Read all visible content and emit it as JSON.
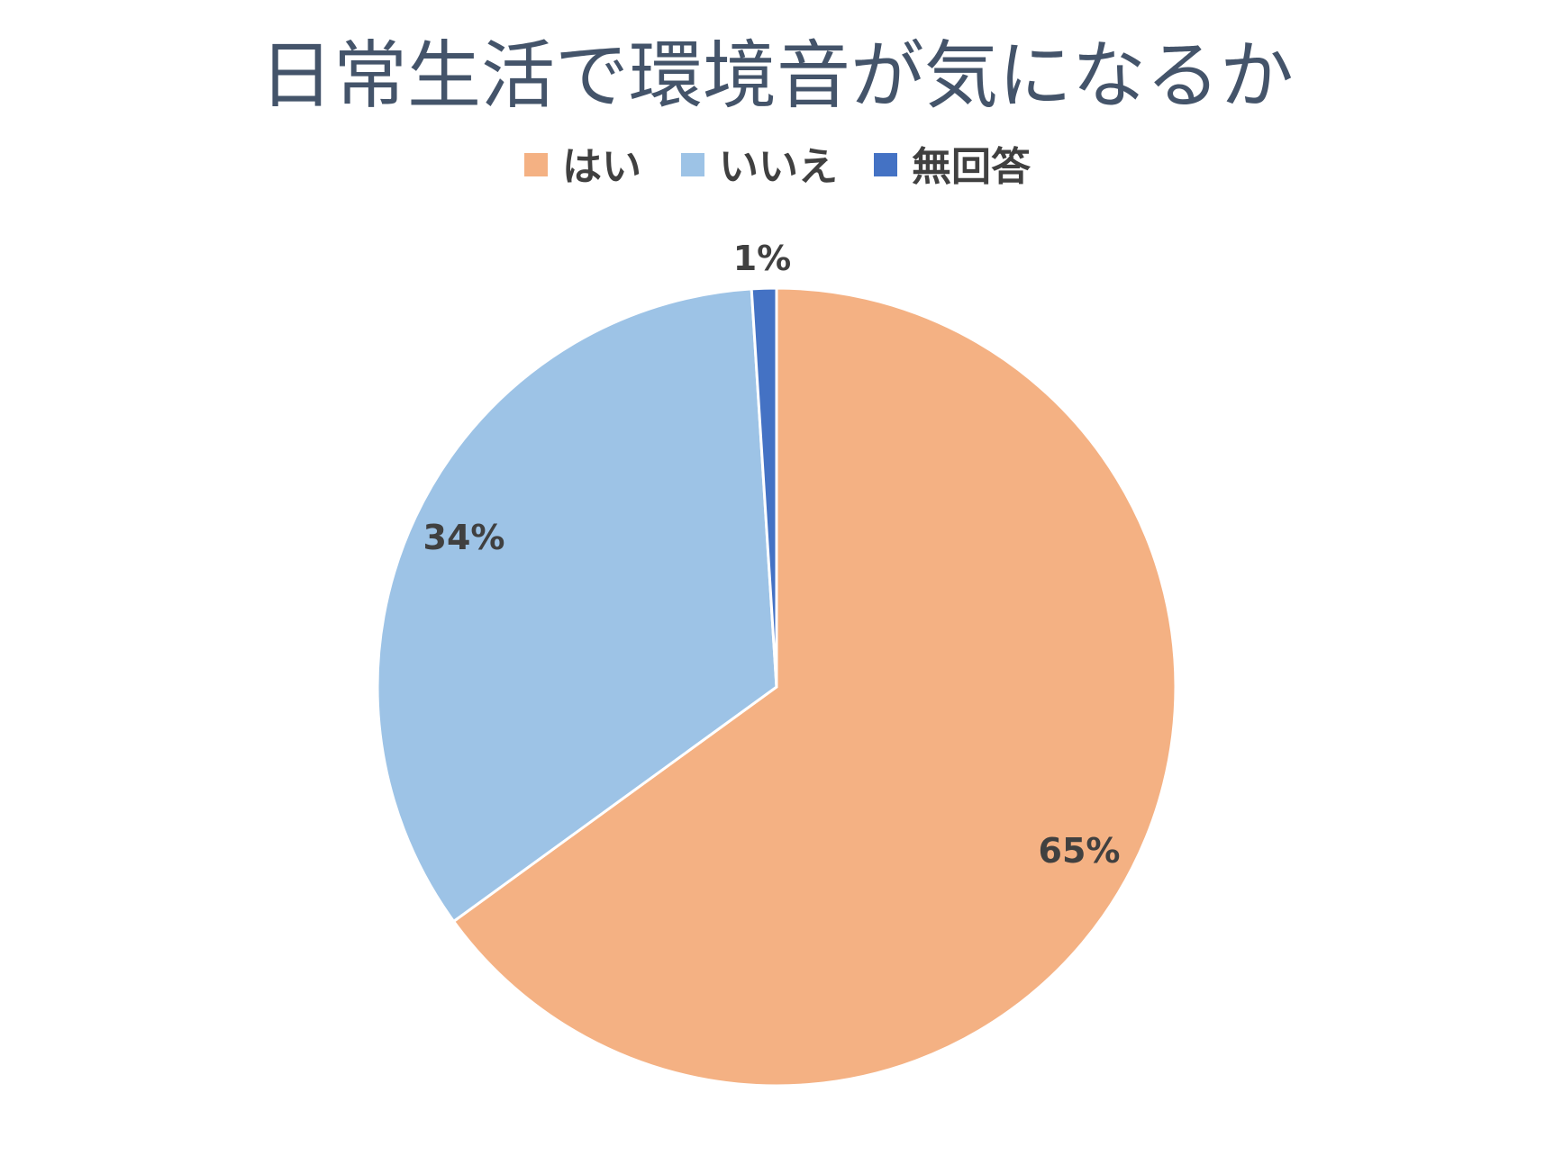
{
  "chart_data": {
    "type": "pie",
    "title": "日常生活で環境音が気になるか",
    "categories": [
      "はい",
      "いいえ",
      "無回答"
    ],
    "values": [
      65,
      34,
      1
    ],
    "data_labels": [
      "65%",
      "34%",
      "1%"
    ],
    "colors": [
      "#f4b183",
      "#9dc3e6",
      "#4472c4"
    ],
    "legend_position": "top",
    "start_angle_deg": 0,
    "direction": "clockwise"
  }
}
